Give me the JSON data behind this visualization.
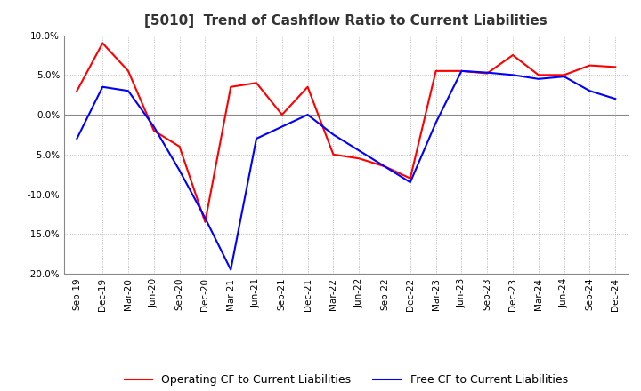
{
  "title": "[5010]  Trend of Cashflow Ratio to Current Liabilities",
  "x_labels": [
    "Sep-19",
    "Dec-19",
    "Mar-20",
    "Jun-20",
    "Sep-20",
    "Dec-20",
    "Mar-21",
    "Jun-21",
    "Sep-21",
    "Dec-21",
    "Mar-22",
    "Jun-22",
    "Sep-22",
    "Dec-22",
    "Mar-23",
    "Jun-23",
    "Sep-23",
    "Dec-23",
    "Mar-24",
    "Jun-24",
    "Sep-24",
    "Dec-24"
  ],
  "operating_cf": [
    3.0,
    9.0,
    5.5,
    -2.0,
    -4.0,
    -13.5,
    3.5,
    4.0,
    0.0,
    3.5,
    -5.0,
    -5.5,
    -6.5,
    -8.0,
    5.5,
    5.5,
    5.2,
    7.5,
    5.0,
    5.0,
    6.2,
    6.0
  ],
  "free_cf": [
    -3.0,
    3.5,
    3.0,
    -1.5,
    -7.0,
    -13.0,
    -19.5,
    -3.0,
    -1.5,
    0.0,
    -2.5,
    -4.5,
    -6.5,
    -8.5,
    -1.0,
    5.5,
    5.3,
    5.0,
    4.5,
    4.8,
    3.0,
    2.0
  ],
  "operating_color": "#ff0000",
  "free_color": "#0000ff",
  "ylim": [
    -20.0,
    10.0
  ],
  "yticks": [
    -20.0,
    -15.0,
    -10.0,
    -5.0,
    0.0,
    5.0,
    10.0
  ],
  "background_color": "#ffffff",
  "grid_color": "#aaaaaa",
  "legend_labels": [
    "Operating CF to Current Liabilities",
    "Free CF to Current Liabilities"
  ]
}
